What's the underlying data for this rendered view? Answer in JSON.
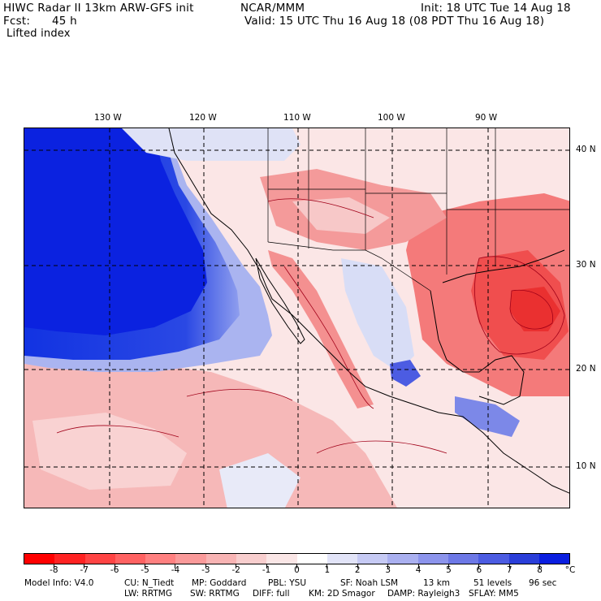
{
  "header": {
    "title": "HIWC Radar II 13km ARW-GFS init",
    "source": "NCAR/MMM",
    "init": "Init: 18 UTC Tue 14 Aug 18",
    "fcst_label": "Fcst:",
    "fcst_value": "45 h",
    "valid": "Valid: 15 UTC Thu 16 Aug 18 (08 PDT Thu 16 Aug 18)",
    "field": "Lifted index"
  },
  "map": {
    "longitude_labels": [
      "130 W",
      "120 W",
      "110 W",
      "100 W",
      "90 W"
    ],
    "latitude_labels": [
      "40 N",
      "30 N",
      "20 N",
      "10 N"
    ],
    "colors": {
      "ocean_stable": "#0f2fe0",
      "unstable": "#f28080",
      "neutral": "#fbe4e4",
      "outline": "#000000",
      "contour": "#a00018"
    }
  },
  "colorbar": {
    "ticks": [
      "-8",
      "-7",
      "-6",
      "-5",
      "-4",
      "-3",
      "-2",
      "-1",
      "0",
      "1",
      "2",
      "3",
      "4",
      "5",
      "6",
      "7",
      "8"
    ],
    "unit": "°C",
    "colors": [
      "#ff0000",
      "#ff2222",
      "#ff4444",
      "#ff6262",
      "#ff8080",
      "#fa9a9a",
      "#f8b4b4",
      "#f8cece",
      "#fae6e6",
      "#ffffff",
      "#e2e4f8",
      "#c6caf4",
      "#aab0f0",
      "#8c94ec",
      "#6d78e6",
      "#4c5ce2",
      "#2a3ed9",
      "#0a1ee0"
    ]
  },
  "footer": {
    "line1": [
      {
        "key": "Model Info: V4.0"
      },
      {
        "key": "CU: N_Tiedt"
      },
      {
        "key": "MP: Goddard"
      },
      {
        "key": "PBL: YSU"
      },
      {
        "key": "SF: Noah LSM"
      },
      {
        "key": "13 km"
      },
      {
        "key": "51 levels"
      },
      {
        "key": "96 sec"
      }
    ],
    "line2": [
      {
        "key": "LW: RRTMG"
      },
      {
        "key": "SW: RRTMG"
      },
      {
        "key": "DIFF: full"
      },
      {
        "key": "KM: 2D Smagor"
      },
      {
        "key": "DAMP: Rayleigh3"
      },
      {
        "key": "SFLAY: MM5"
      }
    ]
  }
}
